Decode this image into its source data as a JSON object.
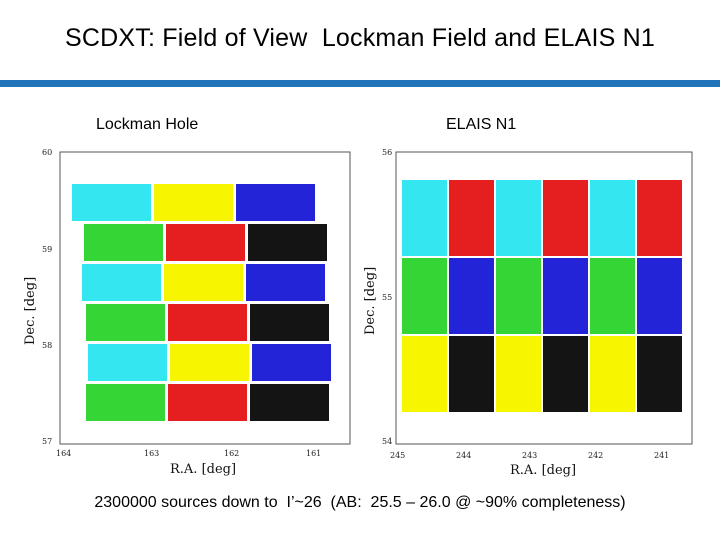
{
  "title": "SCDXT: Field of View  Lockman Field and ELAIS N1",
  "accent_color": "#1f73b8",
  "footer": "2300000 sources down to  I’~26  (AB:  25.5 – 26.0 @ ~90% completeness)",
  "panels": [
    {
      "label": "Lockman Hole",
      "xlabel": "R.A. [deg]",
      "ylabel": "Dec. [deg]",
      "x_ticks": [
        "164",
        "163",
        "162",
        "161"
      ],
      "y_ticks": [
        "60",
        "59",
        "58",
        "57"
      ],
      "rows": [
        [
          "cyan",
          "yellow",
          "blue"
        ],
        [
          "green",
          "red",
          "black"
        ],
        [
          "cyan",
          "yellow",
          "blue"
        ],
        [
          "green",
          "red",
          "black"
        ],
        [
          "cyan",
          "yellow",
          "blue"
        ],
        [
          "green",
          "red",
          "black"
        ]
      ]
    },
    {
      "label": "ELAIS N1",
      "xlabel": "R.A. [deg]",
      "ylabel": "Dec. [deg]",
      "x_ticks": [
        "245",
        "244",
        "243",
        "242",
        "241"
      ],
      "y_ticks": [
        "56",
        "55",
        "54"
      ],
      "rows": [
        [
          "cyan",
          "red",
          "cyan",
          "red",
          "cyan",
          "red"
        ],
        [
          "green",
          "blue",
          "green",
          "blue",
          "green",
          "blue"
        ],
        [
          "yellow",
          "black",
          "yellow",
          "black",
          "yellow",
          "black"
        ]
      ]
    }
  ],
  "colors": {
    "cyan": "#33e6f0",
    "yellow": "#f8f500",
    "blue": "#2323d8",
    "green": "#35d535",
    "red": "#e51f1f",
    "black": "#141414"
  }
}
